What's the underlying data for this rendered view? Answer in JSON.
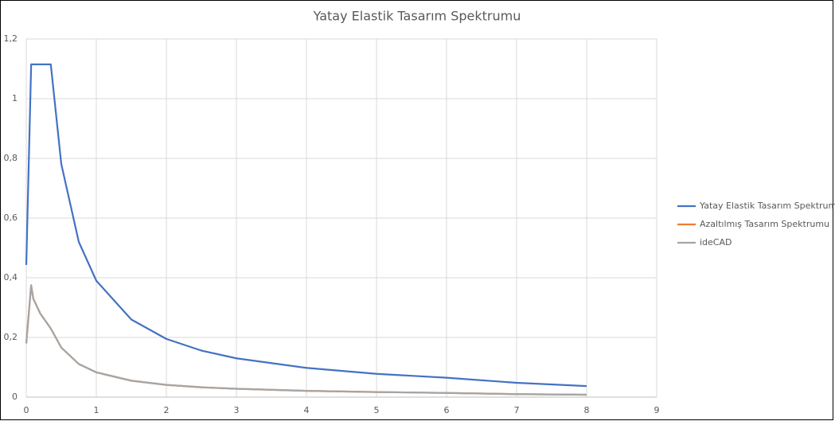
{
  "chart_data": {
    "type": "line",
    "title": "Yatay Elastik Tasarım Spektrumu",
    "x": [
      0,
      0.07,
      0.1,
      0.2,
      0.35,
      0.5,
      0.75,
      1,
      1.5,
      2,
      2.5,
      3,
      4,
      5,
      6,
      7,
      8
    ],
    "series": [
      {
        "name": "Yatay Elastik Tasarım Spektrumu",
        "color": "#4472c4",
        "values": [
          0.443,
          1.115,
          1.115,
          1.115,
          1.115,
          0.781,
          0.52,
          0.39,
          0.26,
          0.195,
          0.156,
          0.13,
          0.098,
          0.078,
          0.065,
          0.048,
          0.037
        ]
      },
      {
        "name": "Azaltılmış Tasarım Spektrumu",
        "color": "#ed7d31",
        "values": [
          0.18,
          0.375,
          0.33,
          0.28,
          0.23,
          0.166,
          0.111,
          0.083,
          0.055,
          0.041,
          0.033,
          0.028,
          0.021,
          0.017,
          0.014,
          0.01,
          0.008
        ]
      },
      {
        "name": "ideCAD",
        "color": "#a5a5a5",
        "values": [
          0.18,
          0.375,
          0.33,
          0.28,
          0.23,
          0.166,
          0.111,
          0.083,
          0.055,
          0.041,
          0.033,
          0.028,
          0.021,
          0.017,
          0.014,
          0.01,
          0.008
        ]
      }
    ],
    "xlim": [
      0,
      9
    ],
    "xticks": [
      0,
      1,
      2,
      3,
      4,
      5,
      6,
      7,
      8,
      9
    ],
    "ylim": [
      0,
      1.2
    ],
    "yticks": [
      0,
      {
        "value": 0.2,
        "label": "0,2"
      },
      {
        "value": 0.4,
        "label": "0,4"
      },
      {
        "value": 0.6,
        "label": "0,6"
      },
      {
        "value": 0.8,
        "label": "0,8"
      },
      1,
      {
        "value": 1.2,
        "label": "1,2"
      }
    ],
    "grid": true,
    "legend": "right"
  }
}
